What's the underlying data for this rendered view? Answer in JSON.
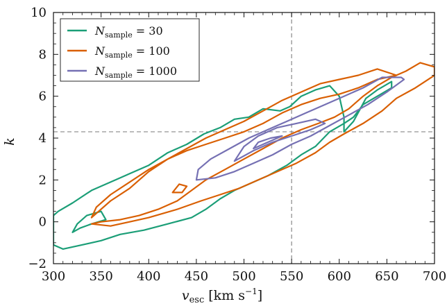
{
  "chart_data": {
    "type": "line",
    "subtype": "contour",
    "xlabel": "v_esc [km s^-1]",
    "ylabel": "k",
    "xlim": [
      300,
      700
    ],
    "ylim": [
      -2,
      10
    ],
    "x_ticks": [
      300,
      350,
      400,
      450,
      500,
      550,
      600,
      650,
      700
    ],
    "y_ticks": [
      -2,
      0,
      2,
      4,
      6,
      8,
      10
    ],
    "grid": false,
    "legend_position": "top-left",
    "reference_lines": {
      "vertical_x": 550,
      "horizontal_y": 4.3
    },
    "series": [
      {
        "name": "N_sample = 30",
        "color": "#1b9e77",
        "contours": [
          [
            [
              300,
              -1.1
            ],
            [
              310,
              -1.3
            ],
            [
              330,
              -1.1
            ],
            [
              350,
              -0.9
            ],
            [
              370,
              -0.6
            ],
            [
              395,
              -0.4
            ],
            [
              420,
              -0.1
            ],
            [
              445,
              0.2
            ],
            [
              460,
              0.6
            ],
            [
              475,
              1.1
            ],
            [
              490,
              1.5
            ],
            [
              505,
              1.8
            ],
            [
              525,
              2.2
            ],
            [
              545,
              2.7
            ],
            [
              560,
              3.2
            ],
            [
              575,
              3.6
            ],
            [
              590,
              4.3
            ],
            [
              605,
              4.7
            ],
            [
              615,
              5.0
            ],
            [
              625,
              5.6
            ],
            [
              640,
              6.0
            ],
            [
              655,
              6.4
            ],
            [
              655,
              6.7
            ],
            [
              640,
              6.3
            ],
            [
              628,
              5.9
            ],
            [
              615,
              4.8
            ],
            [
              605,
              4.3
            ],
            [
              605,
              5.0
            ],
            [
              600,
              6.0
            ],
            [
              590,
              6.5
            ],
            [
              575,
              6.3
            ],
            [
              560,
              6.0
            ],
            [
              548,
              5.5
            ],
            [
              538,
              5.3
            ],
            [
              520,
              5.4
            ],
            [
              505,
              5.0
            ],
            [
              490,
              4.9
            ],
            [
              475,
              4.5
            ],
            [
              458,
              4.2
            ],
            [
              440,
              3.7
            ],
            [
              420,
              3.3
            ],
            [
              400,
              2.7
            ],
            [
              380,
              2.3
            ],
            [
              360,
              1.9
            ],
            [
              340,
              1.5
            ],
            [
              320,
              0.9
            ],
            [
              305,
              0.5
            ],
            [
              300,
              0.3
            ]
          ],
          [
            [
              320,
              -0.5
            ],
            [
              325,
              -0.1
            ],
            [
              335,
              0.3
            ],
            [
              350,
              0.5
            ],
            [
              355,
              0.1
            ],
            [
              340,
              -0.1
            ],
            [
              328,
              -0.3
            ],
            [
              320,
              -0.5
            ]
          ]
        ]
      },
      {
        "name": "N_sample = 100",
        "color": "#d95f02",
        "contours": [
          [
            [
              340,
              -0.1
            ],
            [
              360,
              -0.2
            ],
            [
              380,
              0.0
            ],
            [
              400,
              0.2
            ],
            [
              430,
              0.6
            ],
            [
              455,
              1.0
            ],
            [
              475,
              1.3
            ],
            [
              495,
              1.6
            ],
            [
              515,
              2.0
            ],
            [
              535,
              2.4
            ],
            [
              555,
              2.8
            ],
            [
              575,
              3.3
            ],
            [
              590,
              3.8
            ],
            [
              605,
              4.2
            ],
            [
              625,
              4.7
            ],
            [
              645,
              5.3
            ],
            [
              660,
              5.9
            ],
            [
              680,
              6.4
            ],
            [
              700,
              7.0
            ],
            [
              700,
              7.4
            ],
            [
              685,
              7.6
            ],
            [
              670,
              7.2
            ],
            [
              655,
              6.9
            ],
            [
              640,
              6.5
            ],
            [
              625,
              6.0
            ],
            [
              610,
              5.4
            ],
            [
              595,
              5.0
            ],
            [
              578,
              4.7
            ],
            [
              560,
              4.4
            ],
            [
              540,
              4.0
            ],
            [
              520,
              3.5
            ],
            [
              500,
              3.0
            ],
            [
              480,
              2.5
            ],
            [
              460,
              2.0
            ],
            [
              445,
              1.5
            ],
            [
              430,
              1.0
            ],
            [
              410,
              0.6
            ],
            [
              390,
              0.3
            ],
            [
              370,
              0.1
            ],
            [
              350,
              0.0
            ],
            [
              340,
              -0.1
            ]
          ],
          [
            [
              340,
              0.2
            ],
            [
              360,
              1.0
            ],
            [
              380,
              1.6
            ],
            [
              400,
              2.4
            ],
            [
              420,
              3.0
            ],
            [
              440,
              3.4
            ],
            [
              460,
              3.7
            ],
            [
              480,
              4.0
            ],
            [
              500,
              4.3
            ],
            [
              520,
              4.7
            ],
            [
              540,
              5.2
            ],
            [
              560,
              5.6
            ],
            [
              580,
              5.9
            ],
            [
              600,
              6.1
            ],
            [
              620,
              6.4
            ],
            [
              640,
              6.8
            ],
            [
              660,
              7.0
            ],
            [
              640,
              7.3
            ],
            [
              620,
              7.0
            ],
            [
              600,
              6.8
            ],
            [
              580,
              6.6
            ],
            [
              560,
              6.2
            ],
            [
              540,
              5.8
            ],
            [
              520,
              5.3
            ],
            [
              500,
              4.8
            ],
            [
              480,
              4.4
            ],
            [
              460,
              4.0
            ],
            [
              440,
              3.5
            ],
            [
              420,
              3.0
            ],
            [
              400,
              2.5
            ],
            [
              380,
              1.9
            ],
            [
              360,
              1.3
            ],
            [
              345,
              0.7
            ],
            [
              340,
              0.2
            ]
          ],
          [
            [
              425,
              1.4
            ],
            [
              432,
              1.8
            ],
            [
              440,
              1.7
            ],
            [
              435,
              1.4
            ],
            [
              425,
              1.4
            ]
          ]
        ]
      },
      {
        "name": "N_sample = 1000",
        "color": "#7570b3",
        "contours": [
          [
            [
              450,
              2.0
            ],
            [
              470,
              2.1
            ],
            [
              490,
              2.4
            ],
            [
              510,
              2.8
            ],
            [
              530,
              3.2
            ],
            [
              550,
              3.7
            ],
            [
              570,
              4.1
            ],
            [
              590,
              4.6
            ],
            [
              610,
              5.1
            ],
            [
              630,
              5.6
            ],
            [
              650,
              6.2
            ],
            [
              668,
              6.8
            ],
            [
              665,
              6.9
            ],
            [
              645,
              6.9
            ],
            [
              625,
              6.4
            ],
            [
              605,
              6.0
            ],
            [
              585,
              5.6
            ],
            [
              565,
              5.2
            ],
            [
              545,
              4.8
            ],
            [
              525,
              4.4
            ],
            [
              505,
              4.0
            ],
            [
              485,
              3.5
            ],
            [
              465,
              3.0
            ],
            [
              452,
              2.5
            ],
            [
              450,
              2.0
            ]
          ],
          [
            [
              490,
              2.9
            ],
            [
              510,
              3.4
            ],
            [
              530,
              3.8
            ],
            [
              550,
              4.1
            ],
            [
              570,
              4.4
            ],
            [
              585,
              4.7
            ],
            [
              575,
              4.9
            ],
            [
              555,
              4.7
            ],
            [
              535,
              4.5
            ],
            [
              515,
              4.1
            ],
            [
              500,
              3.6
            ],
            [
              490,
              2.9
            ]
          ],
          [
            [
              510,
              3.5
            ],
            [
              525,
              3.8
            ],
            [
              540,
              4.1
            ],
            [
              528,
              4.0
            ],
            [
              515,
              3.8
            ],
            [
              510,
              3.5
            ]
          ]
        ]
      }
    ]
  }
}
